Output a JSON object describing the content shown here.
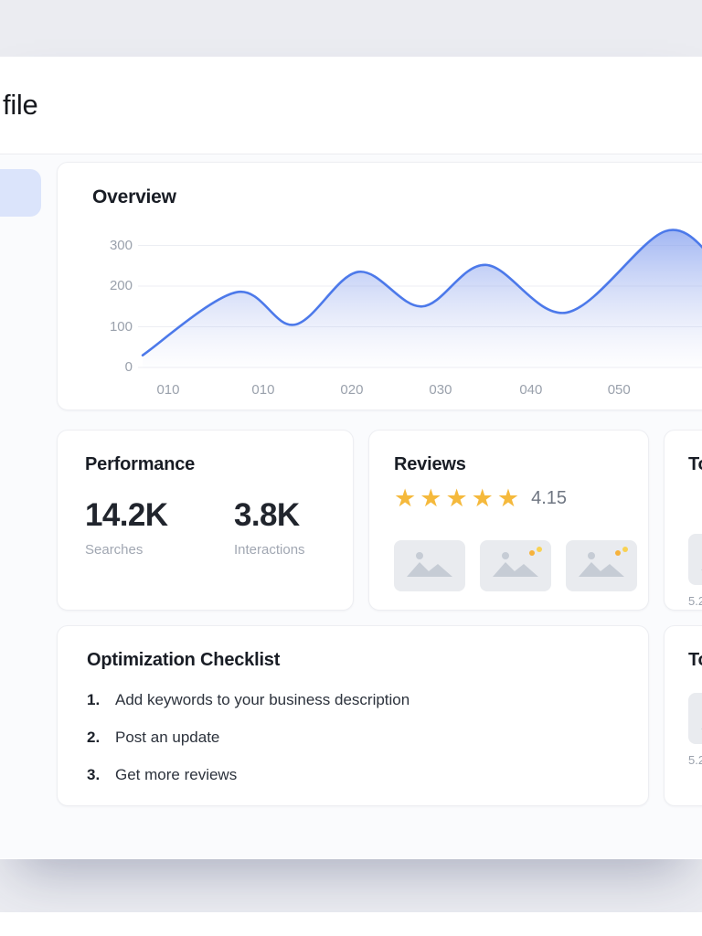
{
  "header": {
    "title": "file"
  },
  "overview": {
    "title": "Overview"
  },
  "chart_data": {
    "type": "area",
    "title": "Overview",
    "x_tick_labels": [
      "010",
      "010",
      "020",
      "030",
      "040",
      "050"
    ],
    "y_ticks": [
      0,
      100,
      200,
      300
    ],
    "ylim": [
      0,
      360
    ],
    "grid": true,
    "legend": false,
    "points": [
      {
        "x": 0.008,
        "v": 30
      },
      {
        "x": 0.17,
        "v": 185
      },
      {
        "x": 0.27,
        "v": 105
      },
      {
        "x": 0.38,
        "v": 235
      },
      {
        "x": 0.49,
        "v": 150
      },
      {
        "x": 0.6,
        "v": 252
      },
      {
        "x": 0.74,
        "v": 135
      },
      {
        "x": 0.91,
        "v": 335
      },
      {
        "x": 1.0,
        "v": 255
      }
    ],
    "line_color": "#4c79ea"
  },
  "performance": {
    "title": "Performance",
    "stats": [
      {
        "value": "14.2K",
        "label": "Searches"
      },
      {
        "value": "3.8K",
        "label": "Interactions"
      }
    ]
  },
  "reviews": {
    "title": "Reviews",
    "rating": "4.15",
    "star_count": 5,
    "photo_count": 3
  },
  "truncated_top_card": {
    "title": "To",
    "caption": "5.2"
  },
  "truncated_bottom_card": {
    "title": "To",
    "caption": "5.2"
  },
  "checklist": {
    "title": "Optimization Checklist",
    "items": [
      {
        "num": "1.",
        "text": "Add keywords to your business description"
      },
      {
        "num": "2.",
        "text": "Post an update"
      },
      {
        "num": "3.",
        "text": "Get more reviews"
      }
    ]
  },
  "icons": {
    "star": "★"
  },
  "colors": {
    "chart_line": "#4c79ea",
    "chart_fill_top": "#7d9aee",
    "star_gold": "#f5b93c",
    "selected_nav_bg": "#dbe4fb",
    "page_background": "#ebecf1"
  }
}
